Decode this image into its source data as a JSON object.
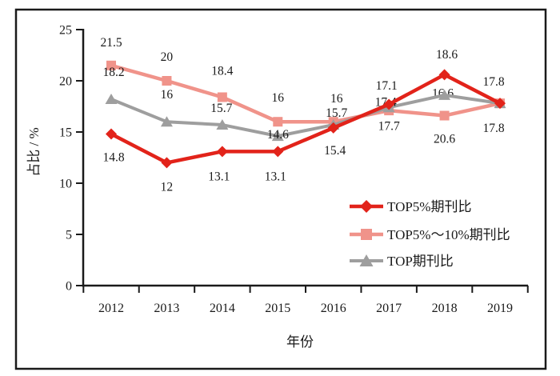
{
  "figure": {
    "background": "#ffffff",
    "border_color": "#1a1a1a",
    "text_color": "#1a1a1a"
  },
  "chart_data": {
    "type": "line",
    "title": "",
    "xlabel": "年份",
    "ylabel": "占比 / %",
    "x_categories": [
      "2012",
      "2013",
      "2014",
      "2015",
      "2016",
      "2017",
      "2018",
      "2019"
    ],
    "y_ticks": [
      0,
      5,
      10,
      15,
      20,
      25
    ],
    "ylim": [
      0,
      25
    ],
    "grid": false,
    "legend_position": "inside-right",
    "series": [
      {
        "name": "TOP5%期刊比",
        "marker": "diamond",
        "color": "#e2231a",
        "values": [
          14.8,
          12,
          13.1,
          13.1,
          15.4,
          17.7,
          20.6,
          17.8
        ]
      },
      {
        "name": "TOP5%～10%期刊比",
        "marker": "square",
        "color": "#f0938a",
        "values": [
          21.5,
          20,
          18.4,
          16,
          16,
          17.1,
          16.6,
          17.8
        ]
      },
      {
        "name": "TOP期刊比",
        "marker": "triangle",
        "color": "#9e9e9e",
        "values": [
          18.2,
          16,
          15.7,
          14.6,
          15.7,
          17.4,
          18.6,
          17.8
        ]
      }
    ]
  }
}
